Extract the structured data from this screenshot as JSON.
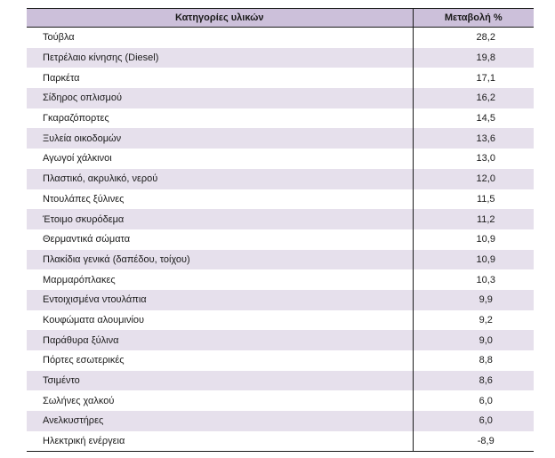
{
  "table": {
    "headers": [
      "Κατηγορίες υλικών",
      "Μεταβολή %"
    ],
    "rows": [
      [
        "Τούβλα",
        "28,2"
      ],
      [
        "Πετρέλαιο κίνησης (Diesel)",
        "19,8"
      ],
      [
        "Παρκέτα",
        "17,1"
      ],
      [
        "Σίδηρος οπλισμού",
        "16,2"
      ],
      [
        "Γκαραζόπορτες",
        "14,5"
      ],
      [
        "Ξυλεία οικοδομών",
        "13,6"
      ],
      [
        "Αγωγοί χάλκινοι",
        "13,0"
      ],
      [
        "Πλαστικό, ακρυλικό, νερού",
        "12,0"
      ],
      [
        "Ντουλάπες ξύλινες",
        "11,5"
      ],
      [
        "Έτοιμο σκυρόδεμα",
        "11,2"
      ],
      [
        "Θερμαντικά σώματα",
        "10,9"
      ],
      [
        "Πλακίδια γενικά (δαπέδου, τοίχου)",
        "10,9"
      ],
      [
        "Μαρμαρόπλακες",
        "10,3"
      ],
      [
        "Εντοιχισμένα ντουλάπια",
        "9,9"
      ],
      [
        "Κουφώματα αλουμινίου",
        "9,2"
      ],
      [
        "Παράθυρα ξύλινα",
        "9,0"
      ],
      [
        "Πόρτες εσωτερικές",
        "8,8"
      ],
      [
        "Τσιμέντο",
        "8,6"
      ],
      [
        "Σωλήνες χαλκού",
        "6,0"
      ],
      [
        "Ανελκυστήρες",
        "6,0"
      ],
      [
        "Ηλεκτρική ενέργεια",
        "-8,9"
      ]
    ]
  },
  "colors": {
    "header_fill": "#ccc0da",
    "band_fill": "#e6e0ec",
    "rule": "#1a1a1a"
  }
}
